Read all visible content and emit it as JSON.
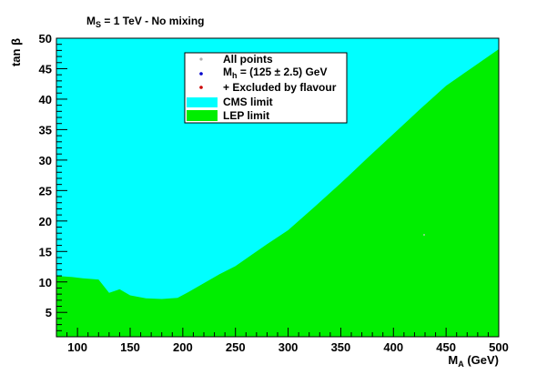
{
  "chart_data": {
    "type": "area",
    "title": "M_S = 1 TeV  -  No mixing",
    "title_main": "M",
    "title_sub": "S",
    "title_rest": " = 1 TeV  -  No mixing",
    "xlabel_main": "M",
    "xlabel_sub": "A",
    "xlabel_rest": " (GeV)",
    "ylabel": "tan β",
    "xlim": [
      80,
      500
    ],
    "ylim": [
      1,
      50
    ],
    "x_ticks": [
      100,
      150,
      200,
      250,
      300,
      350,
      400,
      450,
      500
    ],
    "y_ticks": [
      5,
      10,
      15,
      20,
      25,
      30,
      35,
      40,
      45,
      50
    ],
    "grid": false,
    "legend_placement": "top-center",
    "legend": [
      {
        "label": "All points",
        "marker": "dot",
        "color": "#b0b0b0"
      },
      {
        "label_main": "M",
        "label_sub": "h",
        "label_rest": " = (125 ± 2.5) GeV",
        "marker": "dot",
        "color": "#0000cc"
      },
      {
        "label": "+ Excluded by flavour",
        "marker": "dot",
        "color": "#cc0000"
      },
      {
        "label": "CMS limit",
        "marker": "fill",
        "color": "#00ffff"
      },
      {
        "label": "LEP limit",
        "marker": "fill",
        "color": "#00ee00"
      }
    ],
    "series": [
      {
        "name": "CMS limit",
        "color": "#00ffff",
        "fill": "above",
        "x": [
          80,
          500
        ],
        "y": [
          50,
          50
        ]
      },
      {
        "name": "LEP limit",
        "color": "#00ee00",
        "fill": "below",
        "x": [
          80,
          95,
          105,
          120,
          130,
          140,
          150,
          165,
          180,
          195,
          205,
          220,
          235,
          250,
          265,
          280,
          300,
          325,
          350,
          375,
          400,
          425,
          450,
          475,
          500
        ],
        "y": [
          11.0,
          10.8,
          10.6,
          10.4,
          8.2,
          8.8,
          7.8,
          7.3,
          7.2,
          7.4,
          8.3,
          9.8,
          11.3,
          12.6,
          14.4,
          16.2,
          18.5,
          22.3,
          26.2,
          30.3,
          34.3,
          38.3,
          42.2,
          45.2,
          48.2
        ]
      }
    ]
  }
}
